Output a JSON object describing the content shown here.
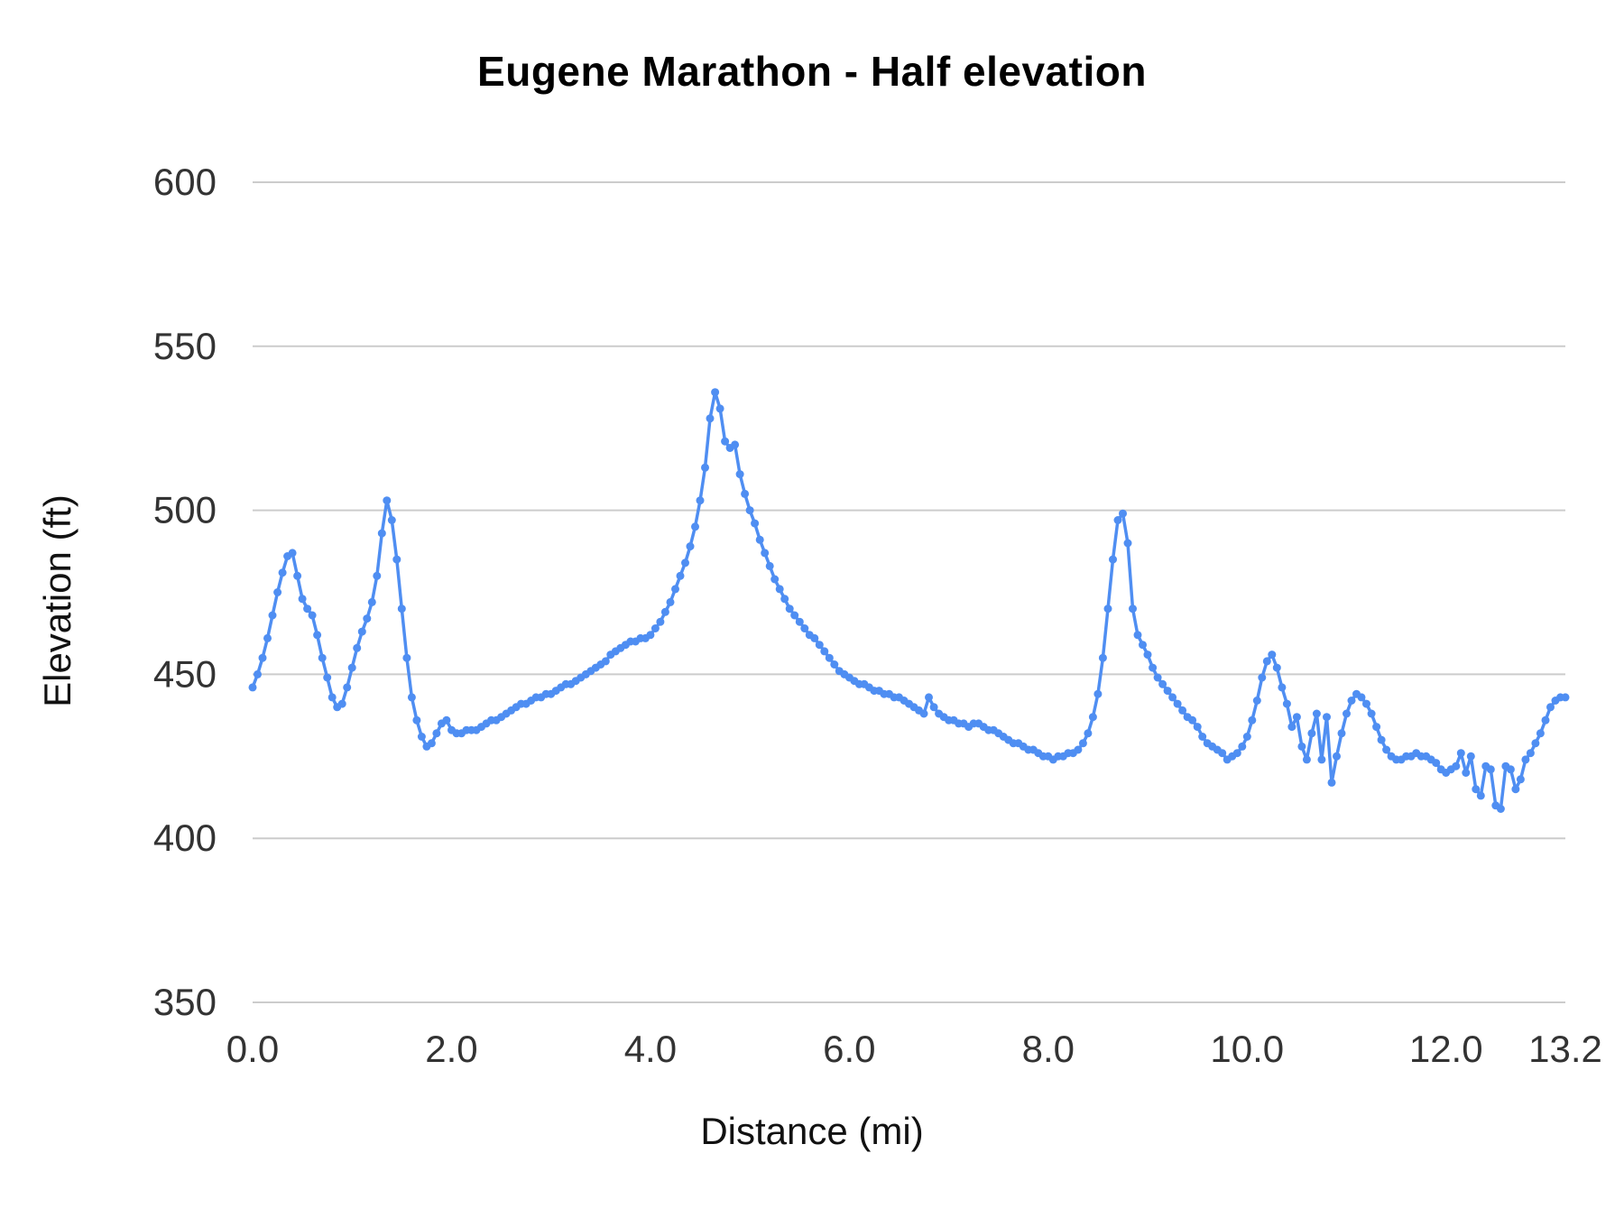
{
  "chart_data": {
    "type": "line",
    "title": "Eugene Marathon - Half elevation",
    "xlabel": "Distance (mi)",
    "ylabel": "Elevation (ft)",
    "x_ticks": [
      "0.0",
      "2.0",
      "4.0",
      "6.0",
      "8.0",
      "10.0",
      "12.0",
      "13.2"
    ],
    "x_tick_values": [
      0,
      2,
      4,
      6,
      8,
      10,
      12,
      13.2
    ],
    "y_ticks": [
      "350",
      "400",
      "450",
      "500",
      "550",
      "600"
    ],
    "y_tick_values": [
      350,
      400,
      450,
      500,
      550,
      600
    ],
    "xlim": [
      0,
      13.2
    ],
    "ylim": [
      350,
      600
    ],
    "grid": "horizontal",
    "legend": "none",
    "line_color": "#4f8ef2",
    "gridline_color": "#cccccc",
    "tick_label_color": "#333333",
    "marker": "circle",
    "x_start": 0,
    "x_step": 0.05,
    "series": [
      {
        "name": "Elevation",
        "values": [
          446,
          450,
          455,
          461,
          468,
          475,
          481,
          486,
          487,
          480,
          473,
          470,
          468,
          462,
          455,
          449,
          443,
          440,
          441,
          446,
          452,
          458,
          463,
          467,
          472,
          480,
          493,
          503,
          497,
          485,
          470,
          455,
          443,
          436,
          431,
          428,
          429,
          432,
          435,
          436,
          433,
          432,
          432,
          433,
          433,
          433,
          434,
          435,
          436,
          436,
          437,
          438,
          439,
          440,
          441,
          441,
          442,
          443,
          443,
          444,
          444,
          445,
          446,
          447,
          447,
          448,
          449,
          450,
          451,
          452,
          453,
          454,
          456,
          457,
          458,
          459,
          460,
          460,
          461,
          461,
          462,
          464,
          466,
          469,
          472,
          476,
          480,
          484,
          489,
          495,
          503,
          513,
          528,
          536,
          531,
          521,
          519,
          520,
          511,
          505,
          500,
          496,
          491,
          487,
          483,
          479,
          476,
          473,
          470,
          468,
          466,
          464,
          462,
          461,
          459,
          457,
          455,
          453,
          451,
          450,
          449,
          448,
          447,
          447,
          446,
          445,
          445,
          444,
          444,
          443,
          443,
          442,
          441,
          440,
          439,
          438,
          443,
          440,
          438,
          437,
          436,
          436,
          435,
          435,
          434,
          435,
          435,
          434,
          433,
          433,
          432,
          431,
          430,
          429,
          429,
          428,
          427,
          427,
          426,
          425,
          425,
          424,
          425,
          425,
          426,
          426,
          427,
          429,
          432,
          437,
          444,
          455,
          470,
          485,
          497,
          499,
          490,
          470,
          462,
          459,
          456,
          452,
          449,
          447,
          445,
          443,
          441,
          439,
          437,
          436,
          434,
          431,
          429,
          428,
          427,
          426,
          424,
          425,
          426,
          428,
          431,
          436,
          442,
          449,
          454,
          456,
          452,
          446,
          441,
          434,
          437,
          428,
          424,
          432,
          438,
          424,
          437,
          417,
          425,
          432,
          438,
          442,
          444,
          443,
          441,
          438,
          434,
          430,
          427,
          425,
          424,
          424,
          425,
          425,
          426,
          425,
          425,
          424,
          423,
          421,
          420,
          421,
          422,
          426,
          420,
          425,
          415,
          413,
          422,
          421,
          410,
          409,
          422,
          421,
          415,
          418,
          424,
          426,
          429,
          432,
          436,
          440,
          442,
          443,
          443
        ]
      }
    ]
  }
}
